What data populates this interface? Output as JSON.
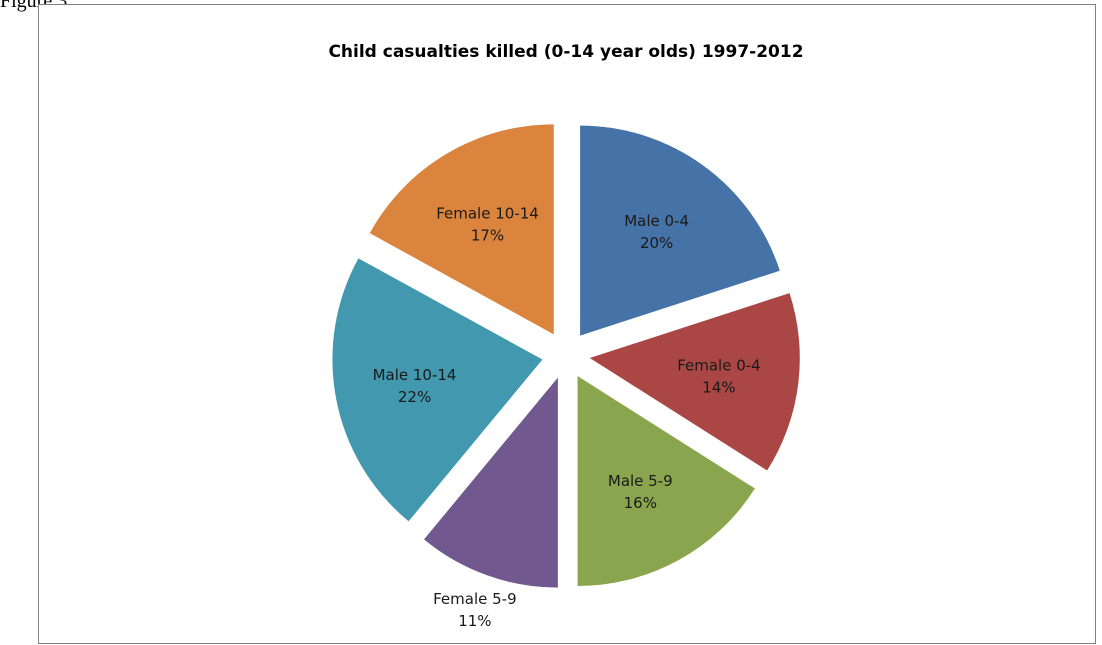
{
  "document": {
    "caption": "Figure 3"
  },
  "chart_data": {
    "type": "pie",
    "title": "Child casualties killed (0-14 year olds) 1997-2012",
    "exploded": true,
    "slices": [
      {
        "name": "Male 0-4",
        "percent_label": "20%",
        "value": 20,
        "color": "#4572A7"
      },
      {
        "name": "Female 0-4",
        "percent_label": "14%",
        "value": 14,
        "color": "#AA4643"
      },
      {
        "name": "Male 5-9",
        "percent_label": "16%",
        "value": 16,
        "color": "#89A54E"
      },
      {
        "name": "Female 5-9",
        "percent_label": "11%",
        "value": 11,
        "color": "#71588F"
      },
      {
        "name": "Male 10-14",
        "percent_label": "22%",
        "value": 22,
        "color": "#4198AF"
      },
      {
        "name": "Female 10-14",
        "percent_label": "17%",
        "value": 17,
        "color": "#DB843D"
      }
    ]
  }
}
